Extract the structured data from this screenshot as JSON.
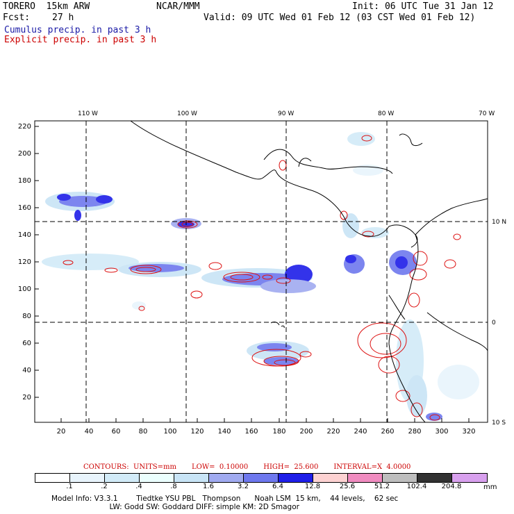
{
  "header": {
    "model_name": "TORERO  15km ARW",
    "org": "NCAR/MMM",
    "init": "Init: 06 UTC Tue 31 Jan 12",
    "fcst_label": "Fcst:",
    "fcst_value": "27 h",
    "valid": "Valid: 09 UTC Wed 01 Feb 12 (03 CST Wed 01 Feb 12)",
    "cumulus_label": "Cumulus precip. in past 3 h",
    "explicit_label": "Explicit precip. in past 3 h"
  },
  "map": {
    "top_lon_labels": [
      "110 W",
      "100 W",
      "90 W",
      "80 W",
      "70 W"
    ],
    "right_lat_labels": [
      "10 N",
      "0",
      "10 S"
    ],
    "y_grid_labels": [
      "220",
      "200",
      "180",
      "160",
      "140",
      "120",
      "100",
      "80",
      "60",
      "40",
      "20"
    ],
    "x_grid_labels": [
      "20",
      "40",
      "60",
      "80",
      "100",
      "120",
      "140",
      "160",
      "180",
      "200",
      "220",
      "240",
      "260",
      "280",
      "300",
      "320"
    ]
  },
  "contours": {
    "units": "CONTOURS:  UNITS=mm",
    "low": "LOW=  0.10000",
    "high": "HIGH=  25.600",
    "interval": "INTERVAL=X  4.0000"
  },
  "legend": {
    "colors": [
      "#ffffff",
      "#e8f4fc",
      "#d2ebf8",
      "#ebfffe",
      "#c8e4f6",
      "#a0aaf0",
      "#6e78ee",
      "#1e1ee8",
      "#fdd2d2",
      "#f08cc0",
      "#bebebe",
      "#323232",
      "#d8a0ee"
    ],
    "ticks": [
      ".1",
      ".2",
      ".4",
      ".8",
      "1.6",
      "3.2",
      "6.4",
      "12.8",
      "25.6",
      "51.2",
      "102.4",
      "204.8"
    ],
    "units": "mm"
  },
  "model_info": {
    "line1": "Model Info: V3.3.1        Tiedtke YSU PBL   Thompson      Noah LSM  15 km,    44 levels,    62 sec",
    "line2": "                         LW: Godd SW: Goddard DIFF: simple KM: 2D Smagor"
  }
}
